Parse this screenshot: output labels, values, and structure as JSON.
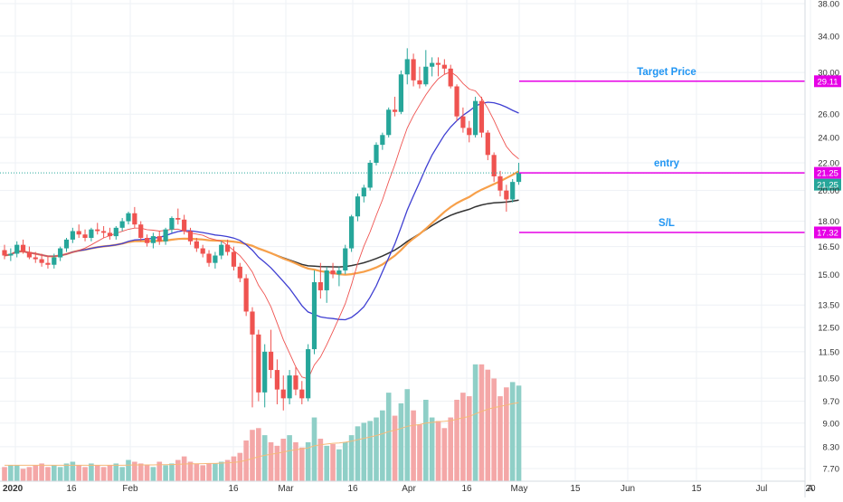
{
  "chart_data": {
    "type": "candlestick",
    "log_scale": true,
    "grid": true,
    "colors": {
      "up": "#26a69a",
      "down": "#ef5350",
      "vol_up": "#8fcfc7",
      "vol_down": "#f4a7a7",
      "ma_fast": "#ef5350",
      "ma_mid": "#3f3fd2",
      "ma_slow": "#f7a04a",
      "ma_long": "#333333",
      "annotation_line": "#e600e6",
      "annotation_text": "#2196f3",
      "last_price_badge": "#26a69a",
      "grid": "#eef1f5"
    },
    "y_ticks": [
      "38.00",
      "34.00",
      "30.00",
      "26.00",
      "24.00",
      "22.00",
      "20.00",
      "18.00",
      "16.50",
      "15.00",
      "13.50",
      "12.50",
      "11.50",
      "10.50",
      "9.70",
      "9.00",
      "8.30",
      "7.70"
    ],
    "x_ticks": [
      "2020",
      "16",
      "Feb",
      "16",
      "Mar",
      "16",
      "Apr",
      "16",
      "May",
      "15",
      "Jun",
      "15",
      "Jul",
      "20",
      "A"
    ],
    "annotations": [
      {
        "label": "Target Price",
        "price": 29.11,
        "badge": "29.11"
      },
      {
        "label": "entry",
        "price": 21.25,
        "badge": "21.25"
      },
      {
        "label": "S/L",
        "price": 17.32,
        "badge": "17.32"
      }
    ],
    "last_price": {
      "value": 21.25,
      "badge": "21.25"
    },
    "candles": [
      [
        16.3,
        16.6,
        15.8,
        16.0
      ],
      [
        16.0,
        16.4,
        15.7,
        16.1
      ],
      [
        16.1,
        16.8,
        15.9,
        16.6
      ],
      [
        16.6,
        16.9,
        16.1,
        16.2
      ],
      [
        16.2,
        16.5,
        15.8,
        15.9
      ],
      [
        15.9,
        16.2,
        15.6,
        15.8
      ],
      [
        15.8,
        16.1,
        15.4,
        15.6
      ],
      [
        15.6,
        16.0,
        15.3,
        15.5
      ],
      [
        15.5,
        16.1,
        15.3,
        15.9
      ],
      [
        15.9,
        16.5,
        15.7,
        16.4
      ],
      [
        16.4,
        17.0,
        16.2,
        16.9
      ],
      [
        16.9,
        17.6,
        16.7,
        17.4
      ],
      [
        17.4,
        17.8,
        17.0,
        17.2
      ],
      [
        17.2,
        17.5,
        16.8,
        17.0
      ],
      [
        17.0,
        17.6,
        16.8,
        17.5
      ],
      [
        17.5,
        17.9,
        17.2,
        17.4
      ],
      [
        17.4,
        17.7,
        17.0,
        17.3
      ],
      [
        17.3,
        17.6,
        16.9,
        17.1
      ],
      [
        17.1,
        17.7,
        16.9,
        17.6
      ],
      [
        17.6,
        18.2,
        17.4,
        18.0
      ],
      [
        18.0,
        18.6,
        17.8,
        18.5
      ],
      [
        18.5,
        18.9,
        17.6,
        17.8
      ],
      [
        17.8,
        18.0,
        16.8,
        17.0
      ],
      [
        17.0,
        17.2,
        16.5,
        16.7
      ],
      [
        16.7,
        17.3,
        16.4,
        17.1
      ],
      [
        17.1,
        17.4,
        16.6,
        16.8
      ],
      [
        16.8,
        17.6,
        16.6,
        17.5
      ],
      [
        17.5,
        18.3,
        17.3,
        18.2
      ],
      [
        18.2,
        18.8,
        17.8,
        18.1
      ],
      [
        18.1,
        18.4,
        17.2,
        17.4
      ],
      [
        17.4,
        17.6,
        16.6,
        16.8
      ],
      [
        16.8,
        17.0,
        16.2,
        16.4
      ],
      [
        16.4,
        16.6,
        15.9,
        16.1
      ],
      [
        16.1,
        16.3,
        15.4,
        15.6
      ],
      [
        15.6,
        16.2,
        15.3,
        16.0
      ],
      [
        16.0,
        16.8,
        15.8,
        16.6
      ],
      [
        16.6,
        16.9,
        16.0,
        16.2
      ],
      [
        16.2,
        16.5,
        15.2,
        15.4
      ],
      [
        15.4,
        15.6,
        14.6,
        14.8
      ],
      [
        14.8,
        15.0,
        13.0,
        13.2
      ],
      [
        13.2,
        13.4,
        9.5,
        12.2
      ],
      [
        12.2,
        12.4,
        9.7,
        10.0
      ],
      [
        10.0,
        11.8,
        9.5,
        11.5
      ],
      [
        11.5,
        12.4,
        10.5,
        10.8
      ],
      [
        10.8,
        11.2,
        9.6,
        10.1
      ],
      [
        10.1,
        10.6,
        9.4,
        9.8
      ],
      [
        9.8,
        10.8,
        9.6,
        10.6
      ],
      [
        10.6,
        10.9,
        9.9,
        10.1
      ],
      [
        10.1,
        10.4,
        9.6,
        9.8
      ],
      [
        9.8,
        11.8,
        9.7,
        11.6
      ],
      [
        11.6,
        15.2,
        11.4,
        14.6
      ],
      [
        14.6,
        15.6,
        13.8,
        14.2
      ],
      [
        14.2,
        15.4,
        13.6,
        15.2
      ],
      [
        15.2,
        15.6,
        14.8,
        15.0
      ],
      [
        15.0,
        15.4,
        14.4,
        15.2
      ],
      [
        15.2,
        16.6,
        15.0,
        16.4
      ],
      [
        16.4,
        18.4,
        16.2,
        18.3
      ],
      [
        18.3,
        19.8,
        18.0,
        19.6
      ],
      [
        19.6,
        20.4,
        19.2,
        20.2
      ],
      [
        20.2,
        22.2,
        20.0,
        22.0
      ],
      [
        22.0,
        23.6,
        21.8,
        23.4
      ],
      [
        23.4,
        24.4,
        23.0,
        24.2
      ],
      [
        24.2,
        26.6,
        24.0,
        26.4
      ],
      [
        26.4,
        27.6,
        25.8,
        26.2
      ],
      [
        26.2,
        30.2,
        26.0,
        29.8
      ],
      [
        29.8,
        32.6,
        28.8,
        31.4
      ],
      [
        31.4,
        32.0,
        28.6,
        29.2
      ],
      [
        29.2,
        30.6,
        28.4,
        28.8
      ],
      [
        28.8,
        32.4,
        28.6,
        30.6
      ],
      [
        30.6,
        31.6,
        29.6,
        31.0
      ],
      [
        31.0,
        31.6,
        29.6,
        30.8
      ],
      [
        30.8,
        31.4,
        29.8,
        30.4
      ],
      [
        30.4,
        30.8,
        28.4,
        28.6
      ],
      [
        28.6,
        28.8,
        25.4,
        25.8
      ],
      [
        25.8,
        26.6,
        24.4,
        24.8
      ],
      [
        24.8,
        25.4,
        23.6,
        24.2
      ],
      [
        24.2,
        27.6,
        24.0,
        27.2
      ],
      [
        27.2,
        27.6,
        24.0,
        24.4
      ],
      [
        24.4,
        24.6,
        22.2,
        22.6
      ],
      [
        22.6,
        22.8,
        20.6,
        21.0
      ],
      [
        21.0,
        21.4,
        19.6,
        20.0
      ],
      [
        20.0,
        20.4,
        18.6,
        19.4
      ],
      [
        19.4,
        20.8,
        19.2,
        20.6
      ],
      [
        20.6,
        22.0,
        20.4,
        21.25
      ]
    ],
    "volume": [
      0.8,
      0.9,
      0.9,
      0.7,
      0.8,
      0.9,
      1.0,
      0.8,
      0.9,
      0.8,
      1.0,
      1.1,
      0.9,
      0.8,
      1.0,
      0.9,
      0.8,
      0.9,
      1.0,
      0.8,
      1.2,
      1.1,
      1.0,
      0.9,
      0.8,
      1.1,
      0.9,
      1.0,
      1.2,
      1.4,
      1.1,
      1.0,
      0.9,
      1.0,
      1.0,
      1.1,
      1.2,
      1.4,
      1.6,
      2.3,
      2.9,
      3.0,
      2.6,
      2.2,
      2.0,
      2.4,
      2.6,
      2.2,
      1.9,
      2.2,
      3.6,
      2.4,
      2.0,
      2.1,
      1.8,
      2.2,
      2.6,
      3.1,
      3.3,
      3.4,
      3.6,
      4.0,
      5.0,
      3.7,
      4.4,
      5.2,
      4.0,
      3.2,
      4.6,
      3.6,
      3.4,
      3.0,
      3.6,
      4.6,
      5.0,
      4.8,
      6.6,
      6.6,
      6.3,
      5.8,
      4.8,
      5.3,
      5.6,
      5.4
    ],
    "volume_ma": [
      0.9,
      0.9,
      0.9,
      0.9,
      0.9,
      0.9,
      0.9,
      0.9,
      0.9,
      0.9,
      0.9,
      0.9,
      0.9,
      0.9,
      0.9,
      0.9,
      0.9,
      0.9,
      0.9,
      0.9,
      0.91,
      0.92,
      0.92,
      0.92,
      0.92,
      0.93,
      0.93,
      0.94,
      0.95,
      0.97,
      0.98,
      0.98,
      0.99,
      1.0,
      1.0,
      1.02,
      1.04,
      1.06,
      1.1,
      1.18,
      1.28,
      1.38,
      1.46,
      1.52,
      1.58,
      1.65,
      1.72,
      1.78,
      1.82,
      1.88,
      2.0,
      2.06,
      2.1,
      2.14,
      2.16,
      2.2,
      2.26,
      2.34,
      2.42,
      2.5,
      2.58,
      2.68,
      2.8,
      2.88,
      2.98,
      3.1,
      3.16,
      3.2,
      3.28,
      3.32,
      3.36,
      3.38,
      3.42,
      3.5,
      3.58,
      3.66,
      3.8,
      3.94,
      4.06,
      4.16,
      4.22,
      4.3,
      4.38,
      4.44
    ]
  }
}
